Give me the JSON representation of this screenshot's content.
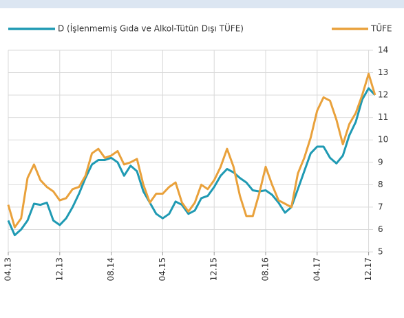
{
  "chart_data": {
    "type": "line",
    "categories": [
      "04.13",
      null,
      null,
      null,
      null,
      null,
      null,
      null,
      "12.13",
      null,
      null,
      null,
      null,
      null,
      null,
      null,
      "08.14",
      null,
      null,
      null,
      null,
      null,
      null,
      null,
      "04.15",
      null,
      null,
      null,
      null,
      null,
      null,
      null,
      "12.15",
      null,
      null,
      null,
      null,
      null,
      null,
      null,
      "08.16",
      null,
      null,
      null,
      null,
      null,
      null,
      null,
      "04.17",
      null,
      null,
      null,
      null,
      null,
      null,
      null,
      "12.17",
      null
    ],
    "series": [
      {
        "name": "D (İşlenmemiş Gıda ve Alkol-Tütün Dışı TÜFE)",
        "color": "#1f9ab3",
        "values": [
          6.4,
          5.75,
          6.0,
          6.4,
          7.15,
          7.1,
          7.2,
          6.4,
          6.2,
          6.5,
          7.0,
          7.6,
          8.3,
          8.9,
          9.1,
          9.1,
          9.2,
          9.0,
          8.4,
          8.85,
          8.6,
          7.7,
          7.2,
          6.7,
          6.5,
          6.7,
          7.25,
          7.1,
          6.7,
          6.85,
          7.4,
          7.5,
          7.9,
          8.4,
          8.7,
          8.55,
          8.3,
          8.1,
          7.75,
          7.7,
          7.75,
          7.55,
          7.2,
          6.75,
          7.0,
          7.8,
          8.6,
          9.4,
          9.7,
          9.7,
          9.2,
          8.95,
          9.3,
          10.2,
          10.8,
          11.8,
          12.3,
          12.0
        ]
      },
      {
        "name": "TÜFE",
        "color": "#e9a13b",
        "values": [
          7.1,
          6.1,
          6.5,
          8.3,
          8.9,
          8.2,
          7.9,
          7.7,
          7.3,
          7.4,
          7.8,
          7.9,
          8.4,
          9.4,
          9.6,
          9.2,
          9.3,
          9.5,
          8.9,
          9.0,
          9.15,
          8.0,
          7.2,
          7.6,
          7.6,
          7.9,
          8.1,
          7.2,
          6.8,
          7.2,
          8.0,
          7.8,
          8.2,
          8.8,
          9.6,
          8.8,
          7.5,
          6.6,
          6.6,
          7.6,
          8.8,
          8.0,
          7.3,
          7.15,
          7.0,
          8.5,
          9.2,
          10.1,
          11.3,
          11.9,
          11.75,
          10.9,
          9.8,
          10.7,
          11.2,
          12.0,
          12.95,
          12.0
        ]
      }
    ],
    "ylim": [
      5,
      14
    ],
    "yticks": [
      5,
      6,
      7,
      8,
      9,
      10,
      11,
      12,
      13,
      14
    ],
    "y_axis_side": "right",
    "grid": true
  }
}
